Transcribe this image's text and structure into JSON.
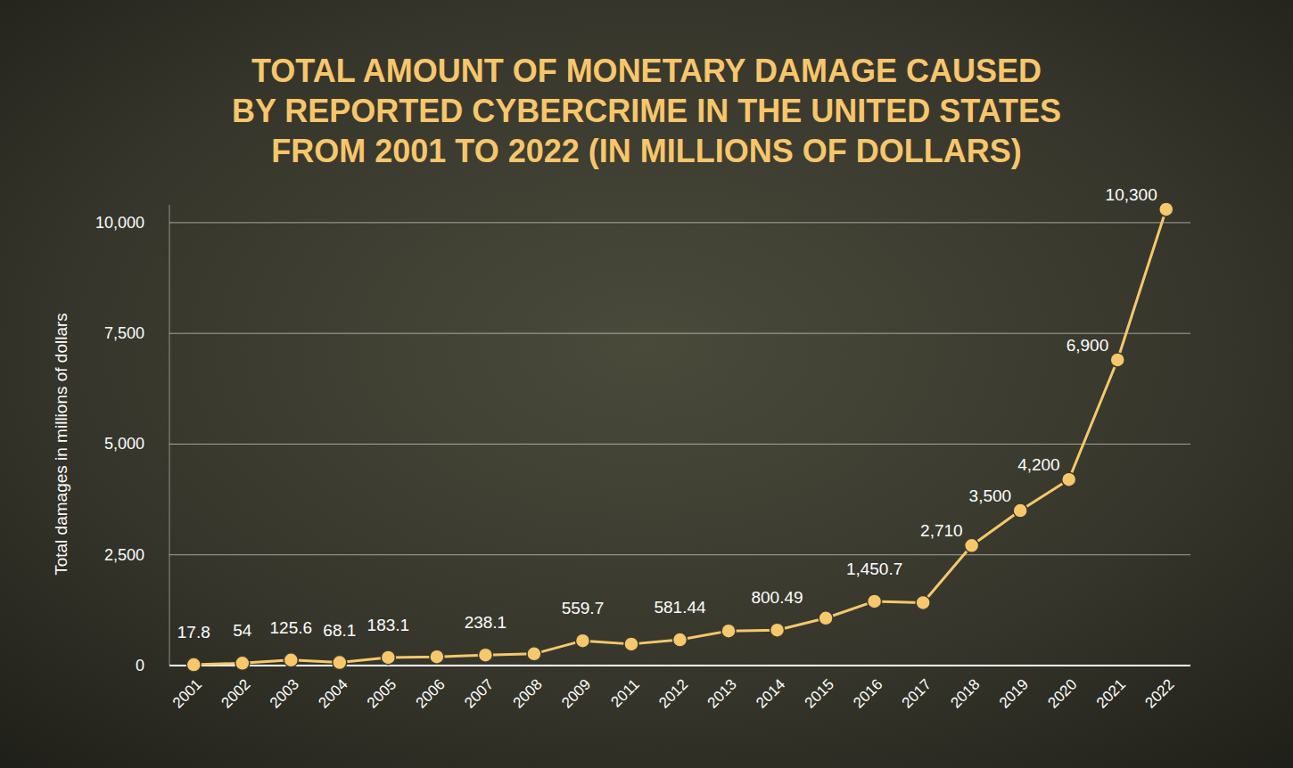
{
  "chart_data": {
    "type": "line",
    "title": "TOTAL AMOUNT OF MONETARY DAMAGE CAUSED BY REPORTED CYBERCRIME IN THE UNITED STATES FROM 2001 TO 2022 (IN MILLIONS OF DOLLARS)",
    "y_label": "Total damages in millions of dollars",
    "categories": [
      "2001",
      "2002",
      "2003",
      "2004",
      "2005",
      "2006",
      "2007",
      "2008",
      "2009",
      "2011",
      "2012",
      "2013",
      "2014",
      "2015",
      "2016",
      "2017",
      "2018",
      "2019",
      "2020",
      "2021",
      "2022"
    ],
    "values": [
      17.8,
      54,
      125.6,
      68.1,
      183.1,
      198.4,
      238.1,
      264.6,
      559.7,
      485.3,
      581.44,
      781.8,
      800.49,
      1070.7,
      1450.7,
      1418.7,
      2710,
      3500,
      4200,
      6900,
      10300
    ],
    "value_labels": [
      "17.8",
      "54",
      "125.6",
      "68.1",
      "183.1",
      null,
      "238.1",
      null,
      "559.7",
      null,
      "581.44",
      null,
      "800.49",
      null,
      "1,450.7",
      null,
      "2,710",
      "3,500",
      "4,200",
      "6,900",
      "10,300"
    ],
    "color": "#f6c86b",
    "marker": "circle",
    "line_style": "solid",
    "data_labels": true,
    "grid": true,
    "ylim": [
      0,
      10400
    ],
    "yticks": [
      0,
      {
        "value": 2500,
        "label": "2,500"
      },
      {
        "value": 5000,
        "label": "5,000"
      },
      {
        "value": 7500,
        "label": "7,500"
      },
      {
        "value": 10000,
        "label": "10,000"
      }
    ]
  }
}
